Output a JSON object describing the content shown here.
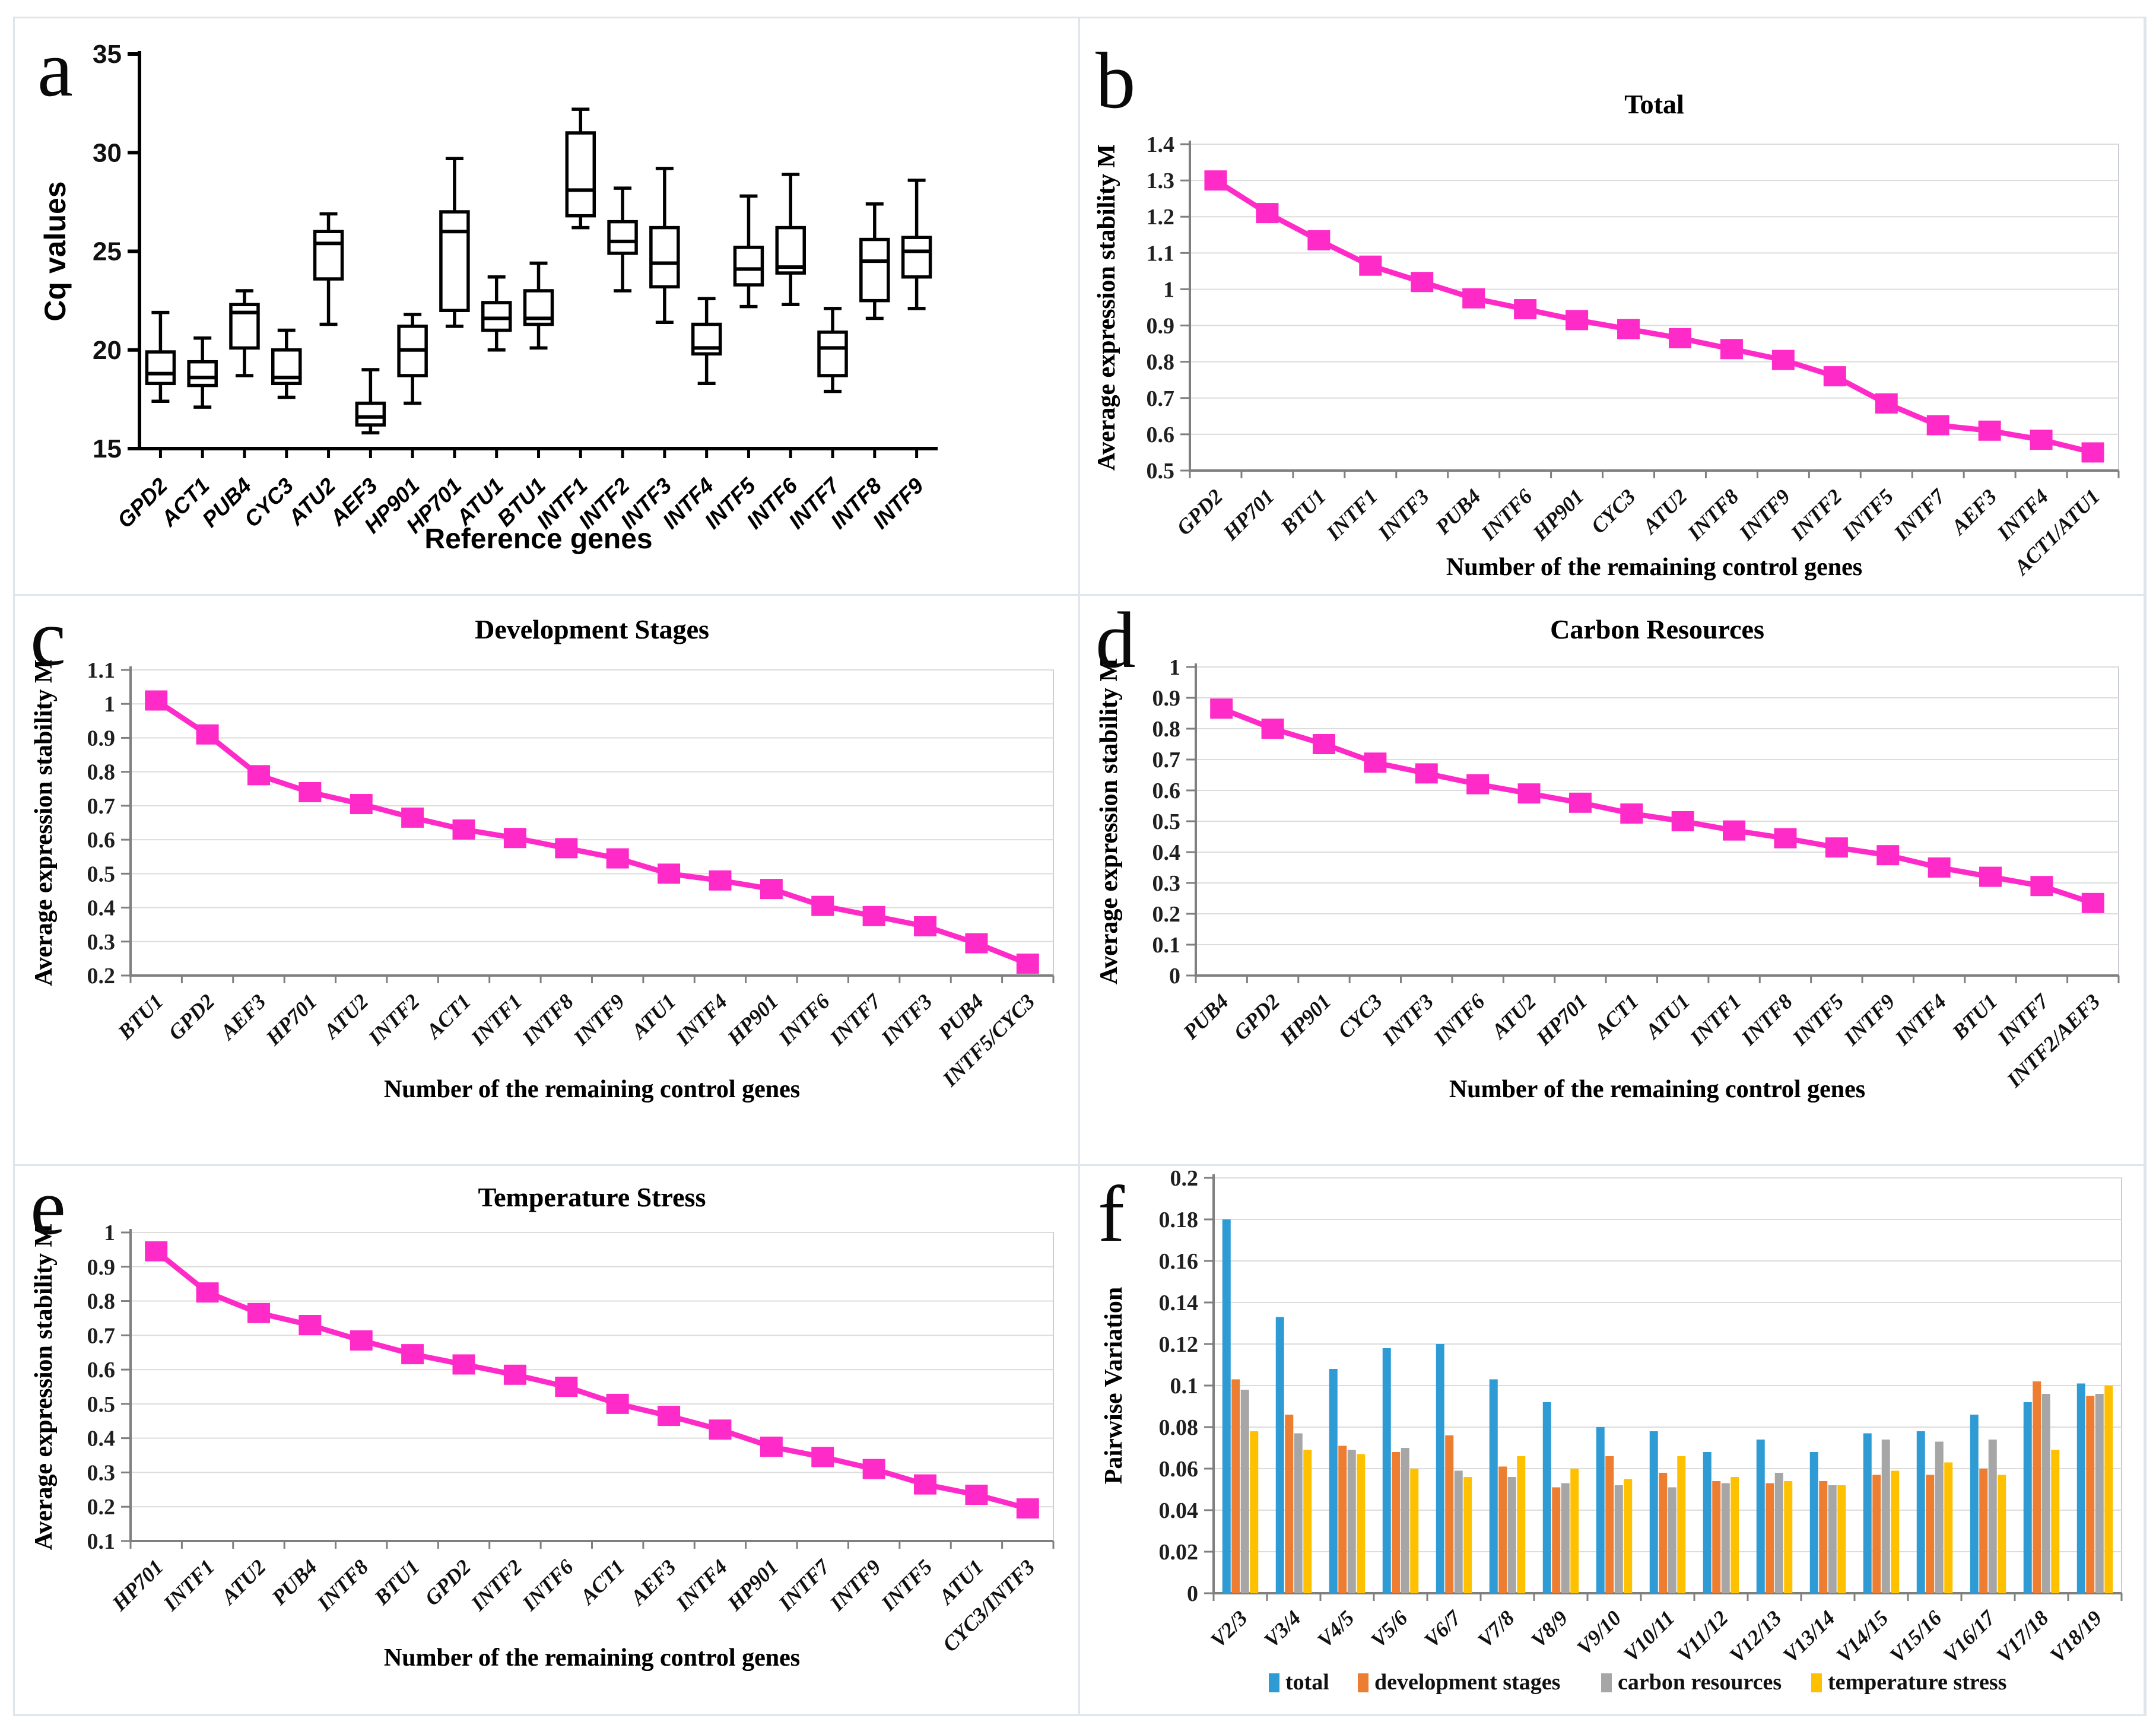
{
  "colors": {
    "magenta": "#FF2BC9",
    "blue": "#2E9BD5",
    "orange": "#ED7D31",
    "gray": "#A6A6A6",
    "yellow": "#FFC000",
    "grid": "#DCDCDC",
    "plot_border": "#C9CED6",
    "axis_gray": "#7F7F7F",
    "axis_black": "#000000",
    "text": "#1F1F1F"
  },
  "chart_data": [
    {
      "panel": "a",
      "letter": "a",
      "type": "box",
      "title": "",
      "ylabel": "Cq values",
      "xlabel": "Reference genes",
      "ylim": [
        15,
        35
      ],
      "yticks": [
        15,
        20,
        25,
        30,
        35
      ],
      "categories": [
        "GPD2",
        "ACT1",
        "PUB4",
        "CYC3",
        "ATU2",
        "AEF3",
        "HP901",
        "HP701",
        "ATU1",
        "BTU1",
        "INTF1",
        "INTF2",
        "INTF3",
        "INTF4",
        "INTF5",
        "INTF6",
        "INTF7",
        "INTF8",
        "INTF9"
      ],
      "boxes": [
        [
          17.4,
          18.3,
          18.8,
          19.9,
          21.9
        ],
        [
          17.1,
          18.2,
          18.6,
          19.4,
          20.6
        ],
        [
          18.7,
          20.1,
          21.9,
          22.3,
          23.0
        ],
        [
          17.6,
          18.3,
          18.6,
          20.0,
          21.0
        ],
        [
          21.3,
          23.6,
          25.4,
          26.0,
          26.9
        ],
        [
          15.8,
          16.2,
          16.6,
          17.3,
          19.0
        ],
        [
          17.3,
          18.7,
          20.0,
          21.2,
          21.8
        ],
        [
          21.2,
          22.0,
          26.0,
          27.0,
          29.7
        ],
        [
          20.0,
          21.0,
          21.6,
          22.4,
          23.7
        ],
        [
          20.1,
          21.3,
          21.6,
          23.0,
          24.4
        ],
        [
          26.2,
          26.8,
          28.1,
          31.0,
          32.2
        ],
        [
          23.0,
          24.9,
          25.5,
          26.5,
          28.2
        ],
        [
          21.4,
          23.2,
          24.4,
          26.2,
          29.2
        ],
        [
          18.3,
          19.8,
          20.1,
          21.3,
          22.6
        ],
        [
          22.2,
          23.3,
          24.1,
          25.2,
          27.8
        ],
        [
          22.3,
          23.9,
          24.2,
          26.2,
          28.9
        ],
        [
          17.9,
          18.7,
          20.1,
          20.9,
          22.1
        ],
        [
          21.6,
          22.5,
          24.5,
          25.6,
          27.4
        ],
        [
          22.1,
          23.7,
          25.0,
          25.7,
          28.6
        ]
      ]
    },
    {
      "panel": "b",
      "letter": "b",
      "type": "line",
      "title": "Total",
      "ylabel": "Average expression stability M",
      "xlabel": "Number of the remaining control genes",
      "ylim": [
        0.5,
        1.4
      ],
      "ystep": 0.1,
      "categories": [
        "GPD2",
        "HP701",
        "BTU1",
        "INTF1",
        "INTF3",
        "PUB4",
        "INTF6",
        "HP901",
        "CYC3",
        "ATU2",
        "INTF8",
        "INTF9",
        "INTF2",
        "INTF5",
        "INTF7",
        "AEF3",
        "INTF4",
        "ACT1/ATU1"
      ],
      "values": [
        1.3,
        1.21,
        1.135,
        1.065,
        1.02,
        0.975,
        0.945,
        0.915,
        0.89,
        0.865,
        0.835,
        0.805,
        0.76,
        0.685,
        0.625,
        0.61,
        0.585,
        0.55
      ]
    },
    {
      "panel": "c",
      "letter": "c",
      "type": "line",
      "title": "Development Stages",
      "ylabel": "Average expression stability M",
      "xlabel": "Number of the remaining control genes",
      "ylim": [
        0.2,
        1.1
      ],
      "ystep": 0.1,
      "categories": [
        "BTU1",
        "GPD2",
        "AEF3",
        "HP701",
        "ATU2",
        "INTF2",
        "ACT1",
        "INTF1",
        "INTF8",
        "INTF9",
        "ATU1",
        "INTF4",
        "HP901",
        "INTF6",
        "INTF7",
        "INTF3",
        "PUB4",
        "INTF5/CYC3"
      ],
      "values": [
        1.01,
        0.91,
        0.79,
        0.74,
        0.705,
        0.665,
        0.63,
        0.605,
        0.575,
        0.545,
        0.5,
        0.48,
        0.455,
        0.405,
        0.375,
        0.345,
        0.295,
        0.235
      ]
    },
    {
      "panel": "d",
      "letter": "d",
      "type": "line",
      "title": "Carbon Resources",
      "ylabel": "Average expression stability M",
      "xlabel": "Number of the remaining control genes",
      "ylim": [
        0,
        1
      ],
      "ystep": 0.1,
      "categories": [
        "PUB4",
        "GPD2",
        "HP901",
        "CYC3",
        "INTF3",
        "INTF6",
        "ATU2",
        "HP701",
        "ACT1",
        "ATU1",
        "INTF1",
        "INTF8",
        "INTF5",
        "INTF9",
        "INTF4",
        "BTU1",
        "INTF7",
        "INTF2/AEF3"
      ],
      "values": [
        0.865,
        0.8,
        0.75,
        0.69,
        0.655,
        0.62,
        0.59,
        0.56,
        0.525,
        0.5,
        0.47,
        0.445,
        0.415,
        0.39,
        0.35,
        0.32,
        0.29,
        0.235
      ]
    },
    {
      "panel": "e",
      "letter": "e",
      "type": "line",
      "title": "Temperature Stress",
      "ylabel": "Average expression stability M",
      "xlabel": "Number of the remaining control genes",
      "ylim": [
        0.1,
        1
      ],
      "ystep": 0.1,
      "categories": [
        "HP701",
        "INTF1",
        "ATU2",
        "PUB4",
        "INTF8",
        "BTU1",
        "GPD2",
        "INTF2",
        "INTF6",
        "ACT1",
        "AEF3",
        "INTF4",
        "HP901",
        "INTF7",
        "INTF9",
        "INTF5",
        "ATU1",
        "CYC3/INTF3"
      ],
      "values": [
        0.945,
        0.825,
        0.765,
        0.73,
        0.685,
        0.645,
        0.615,
        0.585,
        0.55,
        0.5,
        0.465,
        0.425,
        0.375,
        0.345,
        0.31,
        0.265,
        0.235,
        0.195
      ]
    },
    {
      "panel": "f",
      "letter": "f",
      "type": "bar",
      "title": "",
      "ylabel": "Pairwise Variation",
      "xlabel": "",
      "ylim": [
        0,
        0.2
      ],
      "ystep": 0.02,
      "categories": [
        "V2/3",
        "V3/4",
        "V4/5",
        "V5/6",
        "V6/7",
        "V7/8",
        "V8/9",
        "V9/10",
        "V10/11",
        "V11/12",
        "V12/13",
        "V13/14",
        "V14/15",
        "V15/16",
        "V16/17",
        "V17/18",
        "V18/19"
      ],
      "series": [
        {
          "name": "total",
          "color_key": "blue",
          "values": [
            0.18,
            0.133,
            0.108,
            0.118,
            0.12,
            0.103,
            0.092,
            0.08,
            0.078,
            0.068,
            0.074,
            0.068,
            0.077,
            0.078,
            0.086,
            0.092,
            0.101
          ]
        },
        {
          "name": "development stages",
          "color_key": "orange",
          "values": [
            0.103,
            0.086,
            0.071,
            0.068,
            0.076,
            0.061,
            0.051,
            0.066,
            0.058,
            0.054,
            0.053,
            0.054,
            0.057,
            0.057,
            0.06,
            0.102,
            0.095
          ]
        },
        {
          "name": "carbon resources",
          "color_key": "gray",
          "values": [
            0.098,
            0.077,
            0.069,
            0.07,
            0.059,
            0.056,
            0.053,
            0.052,
            0.051,
            0.053,
            0.058,
            0.052,
            0.074,
            0.073,
            0.074,
            0.096,
            0.096
          ]
        },
        {
          "name": "temperature stress",
          "color_key": "yellow",
          "values": [
            0.078,
            0.069,
            0.067,
            0.06,
            0.056,
            0.066,
            0.06,
            0.055,
            0.066,
            0.056,
            0.054,
            0.052,
            0.059,
            0.063,
            0.057,
            0.069,
            0.1
          ]
        }
      ],
      "legend": [
        "total",
        "development stages",
        "carbon resources",
        "temperature stress"
      ]
    }
  ]
}
